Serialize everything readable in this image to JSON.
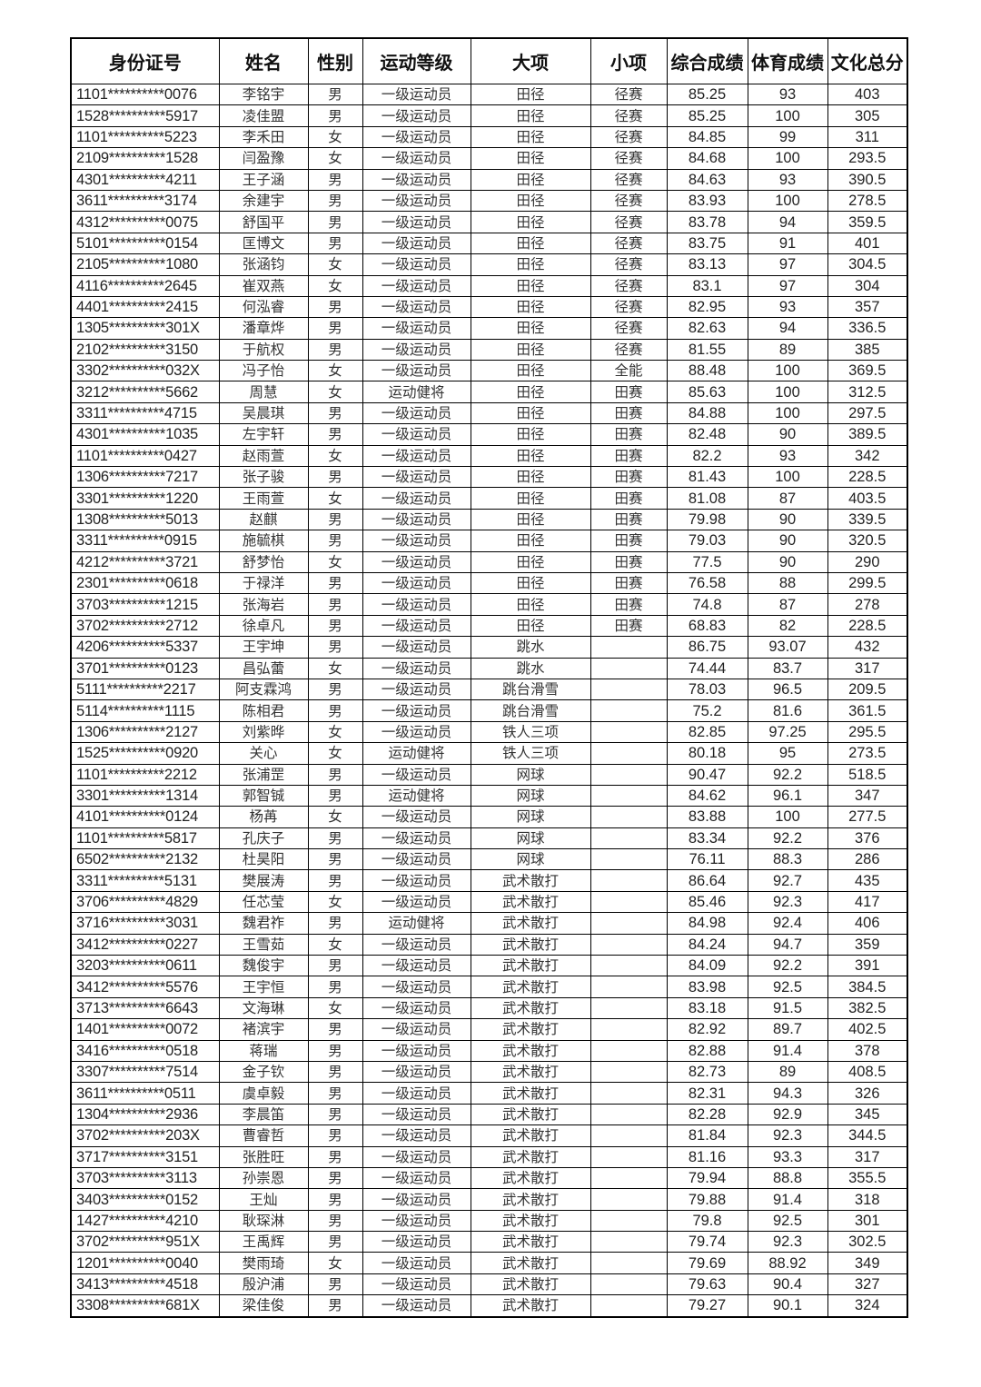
{
  "headers": [
    "身份证号",
    "姓名",
    "性别",
    "运动等级",
    "大项",
    "小项",
    "综合成绩",
    "体育成绩",
    "文化总分"
  ],
  "rows": [
    [
      "1101**********0076",
      "李铭宇",
      "男",
      "一级运动员",
      "田径",
      "径赛",
      "85.25",
      "93",
      "403"
    ],
    [
      "1528**********5917",
      "凌佳盟",
      "男",
      "一级运动员",
      "田径",
      "径赛",
      "85.25",
      "100",
      "305"
    ],
    [
      "1101**********5223",
      "李禾田",
      "女",
      "一级运动员",
      "田径",
      "径赛",
      "84.85",
      "99",
      "311"
    ],
    [
      "2109**********1528",
      "闫盈豫",
      "女",
      "一级运动员",
      "田径",
      "径赛",
      "84.68",
      "100",
      "293.5"
    ],
    [
      "4301**********4211",
      "王子涵",
      "男",
      "一级运动员",
      "田径",
      "径赛",
      "84.63",
      "93",
      "390.5"
    ],
    [
      "3611**********3174",
      "余建宇",
      "男",
      "一级运动员",
      "田径",
      "径赛",
      "83.93",
      "100",
      "278.5"
    ],
    [
      "4312**********0075",
      "舒国平",
      "男",
      "一级运动员",
      "田径",
      "径赛",
      "83.78",
      "94",
      "359.5"
    ],
    [
      "5101**********0154",
      "匡博文",
      "男",
      "一级运动员",
      "田径",
      "径赛",
      "83.75",
      "91",
      "401"
    ],
    [
      "2105**********1080",
      "张涵钧",
      "女",
      "一级运动员",
      "田径",
      "径赛",
      "83.13",
      "97",
      "304.5"
    ],
    [
      "4116**********2645",
      "崔双燕",
      "女",
      "一级运动员",
      "田径",
      "径赛",
      "83.1",
      "97",
      "304"
    ],
    [
      "4401**********2415",
      "何泓睿",
      "男",
      "一级运动员",
      "田径",
      "径赛",
      "82.95",
      "93",
      "357"
    ],
    [
      "1305**********301X",
      "潘章烨",
      "男",
      "一级运动员",
      "田径",
      "径赛",
      "82.63",
      "94",
      "336.5"
    ],
    [
      "2102**********3150",
      "于航权",
      "男",
      "一级运动员",
      "田径",
      "径赛",
      "81.55",
      "89",
      "385"
    ],
    [
      "3302**********032X",
      "冯子怡",
      "女",
      "一级运动员",
      "田径",
      "全能",
      "88.48",
      "100",
      "369.5"
    ],
    [
      "3212**********5662",
      "周慧",
      "女",
      "运动健将",
      "田径",
      "田赛",
      "85.63",
      "100",
      "312.5"
    ],
    [
      "3311**********4715",
      "吴晨琪",
      "男",
      "一级运动员",
      "田径",
      "田赛",
      "84.88",
      "100",
      "297.5"
    ],
    [
      "4301**********1035",
      "左宇轩",
      "男",
      "一级运动员",
      "田径",
      "田赛",
      "82.48",
      "90",
      "389.5"
    ],
    [
      "1101**********0427",
      "赵雨萱",
      "女",
      "一级运动员",
      "田径",
      "田赛",
      "82.2",
      "93",
      "342"
    ],
    [
      "1306**********7217",
      "张子骏",
      "男",
      "一级运动员",
      "田径",
      "田赛",
      "81.43",
      "100",
      "228.5"
    ],
    [
      "3301**********1220",
      "王雨萱",
      "女",
      "一级运动员",
      "田径",
      "田赛",
      "81.08",
      "87",
      "403.5"
    ],
    [
      "1308**********5013",
      "赵麒",
      "男",
      "一级运动员",
      "田径",
      "田赛",
      "79.98",
      "90",
      "339.5"
    ],
    [
      "3311**********0915",
      "施毓棋",
      "男",
      "一级运动员",
      "田径",
      "田赛",
      "79.03",
      "90",
      "320.5"
    ],
    [
      "4212**********3721",
      "舒梦怡",
      "女",
      "一级运动员",
      "田径",
      "田赛",
      "77.5",
      "90",
      "290"
    ],
    [
      "2301**********0618",
      "于禄洋",
      "男",
      "一级运动员",
      "田径",
      "田赛",
      "76.58",
      "88",
      "299.5"
    ],
    [
      "3703**********1215",
      "张海岩",
      "男",
      "一级运动员",
      "田径",
      "田赛",
      "74.8",
      "87",
      "278"
    ],
    [
      "3702**********2712",
      "徐卓凡",
      "男",
      "一级运动员",
      "田径",
      "田赛",
      "68.83",
      "82",
      "228.5"
    ],
    [
      "4206**********5337",
      "王宇坤",
      "男",
      "一级运动员",
      "跳水",
      "",
      "86.75",
      "93.07",
      "432"
    ],
    [
      "3701**********0123",
      "昌弘蕾",
      "女",
      "一级运动员",
      "跳水",
      "",
      "74.44",
      "83.7",
      "317"
    ],
    [
      "5111**********2217",
      "阿支霖鸿",
      "男",
      "一级运动员",
      "跳台滑雪",
      "",
      "78.03",
      "96.5",
      "209.5"
    ],
    [
      "5114**********1115",
      "陈相君",
      "男",
      "一级运动员",
      "跳台滑雪",
      "",
      "75.2",
      "81.6",
      "361.5"
    ],
    [
      "1306**********2127",
      "刘紫晔",
      "女",
      "一级运动员",
      "铁人三项",
      "",
      "82.85",
      "97.25",
      "295.5"
    ],
    [
      "1525**********0920",
      "关心",
      "女",
      "运动健将",
      "铁人三项",
      "",
      "80.18",
      "95",
      "273.5"
    ],
    [
      "1101**********2212",
      "张浦罡",
      "男",
      "一级运动员",
      "网球",
      "",
      "90.47",
      "92.2",
      "518.5"
    ],
    [
      "3301**********1314",
      "郭智铖",
      "男",
      "运动健将",
      "网球",
      "",
      "84.62",
      "96.1",
      "347"
    ],
    [
      "4101**********0124",
      "杨苒",
      "女",
      "一级运动员",
      "网球",
      "",
      "83.88",
      "100",
      "277.5"
    ],
    [
      "1101**********5817",
      "孔庆子",
      "男",
      "一级运动员",
      "网球",
      "",
      "83.34",
      "92.2",
      "376"
    ],
    [
      "6502**********2132",
      "杜昊阳",
      "男",
      "一级运动员",
      "网球",
      "",
      "76.11",
      "88.3",
      "286"
    ],
    [
      "3311**********5131",
      "樊展涛",
      "男",
      "一级运动员",
      "武术散打",
      "",
      "86.64",
      "92.7",
      "435"
    ],
    [
      "3706**********4829",
      "任芯莹",
      "女",
      "一级运动员",
      "武术散打",
      "",
      "85.46",
      "92.3",
      "417"
    ],
    [
      "3716**********3031",
      "魏君祚",
      "男",
      "运动健将",
      "武术散打",
      "",
      "84.98",
      "92.4",
      "406"
    ],
    [
      "3412**********0227",
      "王雪茹",
      "女",
      "一级运动员",
      "武术散打",
      "",
      "84.24",
      "94.7",
      "359"
    ],
    [
      "3203**********0611",
      "魏俊宇",
      "男",
      "一级运动员",
      "武术散打",
      "",
      "84.09",
      "92.2",
      "391"
    ],
    [
      "3412**********5576",
      "王宇恒",
      "男",
      "一级运动员",
      "武术散打",
      "",
      "83.98",
      "92.5",
      "384.5"
    ],
    [
      "3713**********6643",
      "文海琳",
      "女",
      "一级运动员",
      "武术散打",
      "",
      "83.18",
      "91.5",
      "382.5"
    ],
    [
      "1401**********0072",
      "褚滨宇",
      "男",
      "一级运动员",
      "武术散打",
      "",
      "82.92",
      "89.7",
      "402.5"
    ],
    [
      "3416**********0518",
      "蒋瑞",
      "男",
      "一级运动员",
      "武术散打",
      "",
      "82.88",
      "91.4",
      "378"
    ],
    [
      "3307**********7514",
      "金子钦",
      "男",
      "一级运动员",
      "武术散打",
      "",
      "82.73",
      "89",
      "408.5"
    ],
    [
      "3611**********0511",
      "虞卓毅",
      "男",
      "一级运动员",
      "武术散打",
      "",
      "82.31",
      "94.3",
      "326"
    ],
    [
      "1304**********2936",
      "李晨笛",
      "男",
      "一级运动员",
      "武术散打",
      "",
      "82.28",
      "92.9",
      "345"
    ],
    [
      "3702**********203X",
      "曹睿哲",
      "男",
      "一级运动员",
      "武术散打",
      "",
      "81.84",
      "92.3",
      "344.5"
    ],
    [
      "3717**********3151",
      "张胜旺",
      "男",
      "一级运动员",
      "武术散打",
      "",
      "81.16",
      "93.3",
      "317"
    ],
    [
      "3703**********3113",
      "孙崇恩",
      "男",
      "一级运动员",
      "武术散打",
      "",
      "79.94",
      "88.8",
      "355.5"
    ],
    [
      "3403**********0152",
      "王灿",
      "男",
      "一级运动员",
      "武术散打",
      "",
      "79.88",
      "91.4",
      "318"
    ],
    [
      "1427**********4210",
      "耿琛淋",
      "男",
      "一级运动员",
      "武术散打",
      "",
      "79.8",
      "92.5",
      "301"
    ],
    [
      "3702**********951X",
      "王禹辉",
      "男",
      "一级运动员",
      "武术散打",
      "",
      "79.74",
      "92.3",
      "302.5"
    ],
    [
      "1201**********0040",
      "樊雨琦",
      "女",
      "一级运动员",
      "武术散打",
      "",
      "79.69",
      "88.92",
      "349"
    ],
    [
      "3413**********4518",
      "殷沪浦",
      "男",
      "一级运动员",
      "武术散打",
      "",
      "79.63",
      "90.4",
      "327"
    ],
    [
      "3308**********681X",
      "梁佳俊",
      "男",
      "一级运动员",
      "武术散打",
      "",
      "79.27",
      "90.1",
      "324"
    ]
  ]
}
